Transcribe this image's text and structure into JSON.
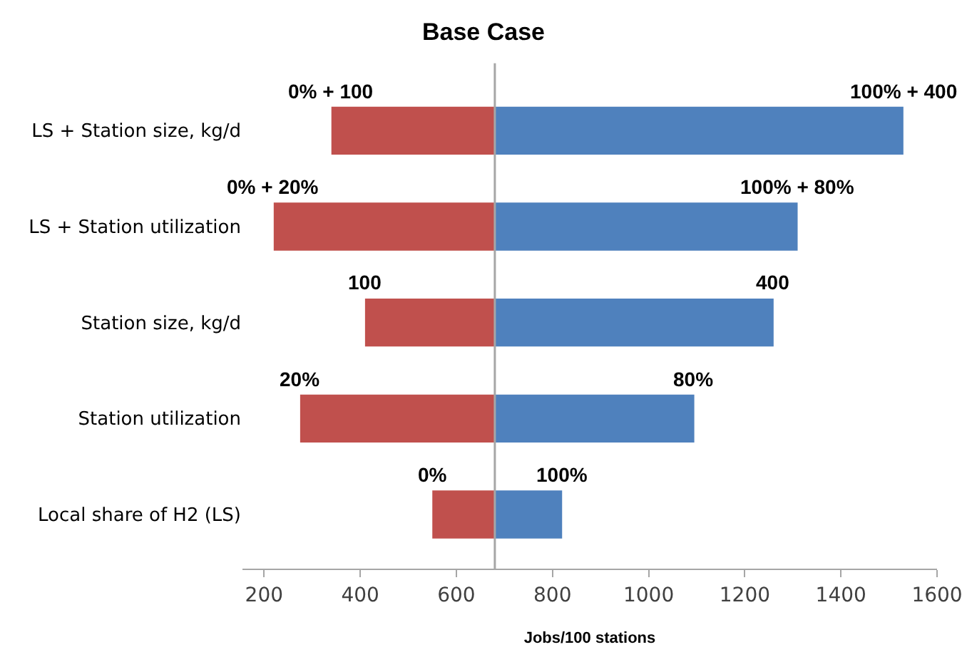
{
  "chart_data": {
    "type": "bar",
    "orientation": "horizontal",
    "title": "Base Case",
    "xlabel": "Jobs/100 stations",
    "categories": [
      "LS + Station size, kg/d",
      "LS + Station utilization",
      "Station size, kg/d",
      "Station utilization",
      "Local share of H2 (LS)"
    ],
    "series": [
      {
        "color": "#c0504d",
        "base": [
          340,
          220,
          410,
          275,
          550
        ],
        "values": [
          340,
          460,
          270,
          405,
          130
        ]
      },
      {
        "color": "#4f81bd",
        "base": [
          680,
          680,
          680,
          680,
          680
        ],
        "values": [
          850,
          630,
          580,
          415,
          140
        ]
      }
    ],
    "annotations": [
      {
        "text": "0% + 100",
        "x": 340,
        "y": "LS + Station size, kg/d"
      },
      {
        "text": "0% + 20%",
        "x": 220,
        "y": "LS + Station utilization"
      },
      {
        "text": "100",
        "x": 410,
        "y": "Station size, kg/d"
      },
      {
        "text": "20%",
        "x": 275,
        "y": "Station utilization"
      },
      {
        "text": "0%",
        "x": 550,
        "y": "Local share of H2 (LS)"
      },
      {
        "text": "100% + 400",
        "x": 1530,
        "y": "LS + Station size, kg/d"
      },
      {
        "text": "100% + 80%",
        "x": 1310,
        "y": "LS + Station utilization"
      },
      {
        "text": "400",
        "x": 1260,
        "y": "Station size, kg/d"
      },
      {
        "text": "80%",
        "x": 1095,
        "y": "Station utilization"
      },
      {
        "text": "100%",
        "x": 820,
        "y": "Local share of H2 (LS)"
      }
    ],
    "xlim": [
      155,
      1600
    ],
    "xticks": [
      200,
      400,
      600,
      800,
      1000,
      1200,
      1400,
      1600
    ],
    "ref_lines": [
      {
        "axis": "x",
        "value": 680,
        "color": "#a6a6a6"
      }
    ],
    "grid": false
  }
}
